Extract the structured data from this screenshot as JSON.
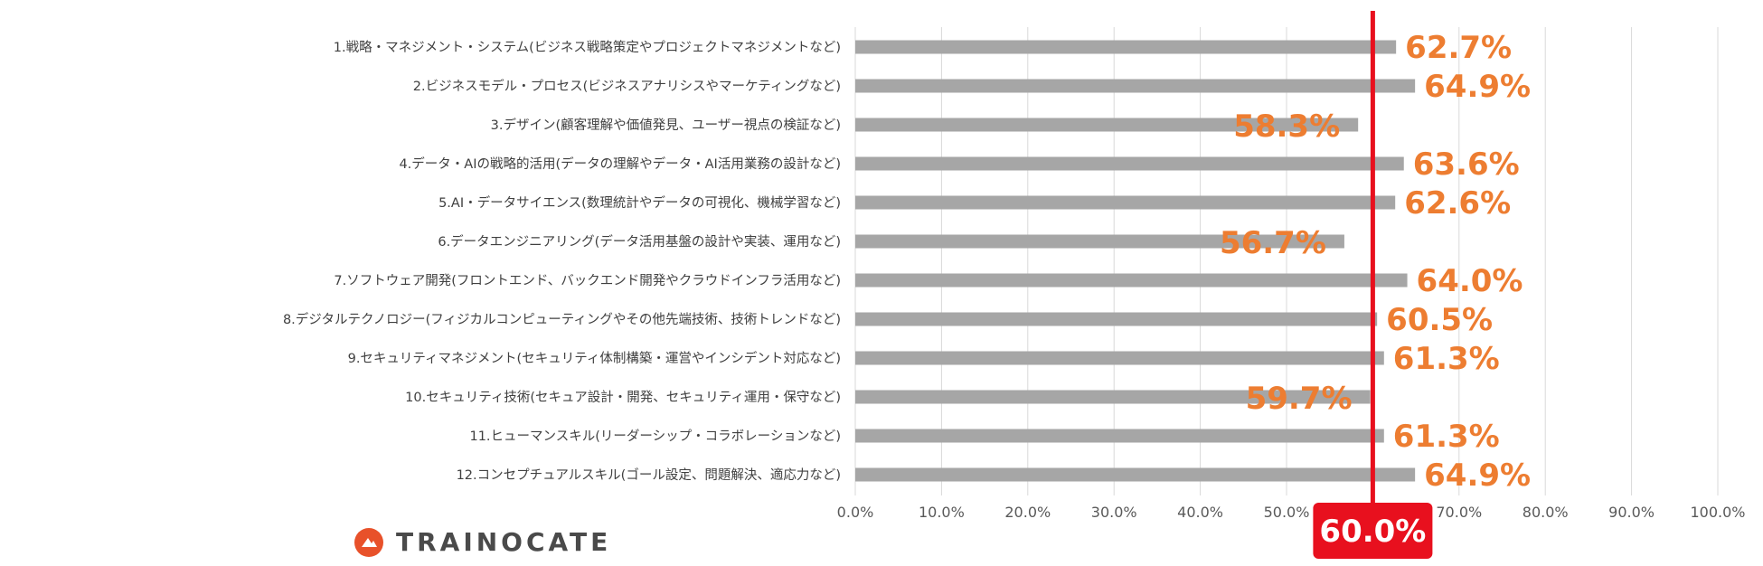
{
  "chart_data": {
    "type": "bar",
    "orientation": "horizontal",
    "categories": [
      "1.戦略・マネジメント・システム(ビジネス戦略策定やプロジェクトマネジメントなど)",
      "2.ビジネスモデル・プロセス(ビジネスアナリシスやマーケティングなど)",
      "3.デザイン(顧客理解や価値発見、ユーザー視点の検証など)",
      "4.データ・AIの戦略的活用(データの理解やデータ・AI活用業務の設計など)",
      "5.AI・データサイエンス(数理統計やデータの可視化、機械学習など)",
      "6.データエンジニアリング(データ活用基盤の設計や実装、運用など)",
      "7.ソフトウェア開発(フロントエンド、バックエンド開発やクラウドインフラ活用など)",
      "8.デジタルテクノロジー(フィジカルコンピューティングやその他先端技術、技術トレンドなど)",
      "9.セキュリティマネジメント(セキュリティ体制構築・運営やインシデント対応など)",
      "10.セキュリティ技術(セキュア設計・開発、セキュリティ運用・保守など)",
      "11.ヒューマンスキル(リーダーシップ・コラボレーションなど)",
      "12.コンセプチュアルスキル(ゴール設定、問題解決、適応力など)"
    ],
    "values": [
      62.7,
      64.9,
      58.3,
      63.6,
      62.6,
      56.7,
      64.0,
      60.5,
      61.3,
      59.7,
      61.3,
      64.9
    ],
    "value_labels": [
      "62.7%",
      "64.9%",
      "58.3%",
      "63.6%",
      "62.6%",
      "56.7%",
      "64.0%",
      "60.5%",
      "61.3%",
      "59.7%",
      "61.3%",
      "64.9%"
    ],
    "xlim": [
      0,
      100
    ],
    "x_ticks": [
      0,
      10,
      20,
      30,
      40,
      50,
      60,
      70,
      80,
      90,
      100
    ],
    "x_tick_labels": [
      "0.0%",
      "10.0%",
      "20.0%",
      "30.0%",
      "40.0%",
      "50.0%",
      "60.0%",
      "70.0%",
      "80.0%",
      "90.0%",
      "100.0%"
    ],
    "grid": "vertical",
    "reference_line": {
      "value": 60.0,
      "label": "60.0%"
    },
    "colors": {
      "bar": "#a6a6a6",
      "value_label": "#ed7d31",
      "reference": "#e8101e",
      "grid": "#d9d9d9"
    }
  },
  "brand": {
    "logo_text": "TRAINOCATE",
    "logo_color": "#e8512a"
  }
}
